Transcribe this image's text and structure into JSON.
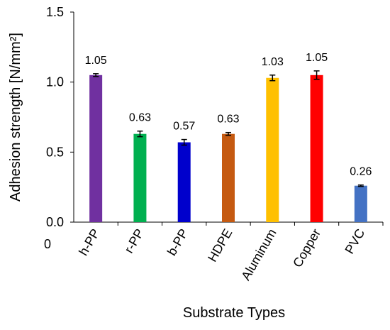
{
  "chart_data": {
    "type": "bar",
    "categories": [
      "h-PP",
      "r-PP",
      "b-PP",
      "HDPE",
      "Aluminum",
      "Copper",
      "PVC"
    ],
    "values": [
      1.05,
      0.63,
      0.57,
      0.63,
      1.03,
      1.05,
      0.26
    ],
    "errors": [
      0.01,
      0.02,
      0.02,
      0.01,
      0.02,
      0.03,
      0.005
    ],
    "data_labels": [
      "1.05",
      "0.63",
      "0.57",
      "0.63",
      "1.03",
      "1.05",
      "0.26"
    ],
    "colors": [
      "#7030A0",
      "#00B050",
      "#0000CC",
      "#C55A11",
      "#FFC000",
      "#FF0000",
      "#4472C4"
    ],
    "xlabel": "Substrate Types",
    "ylabel": "Adhesion strength [N/mm²]",
    "ylim": [
      0,
      1.5
    ],
    "yticks": [
      "0.0",
      "0.5",
      "1.0",
      "1.5"
    ],
    "y_origin_label": "0",
    "grid": false,
    "legend": "none"
  }
}
